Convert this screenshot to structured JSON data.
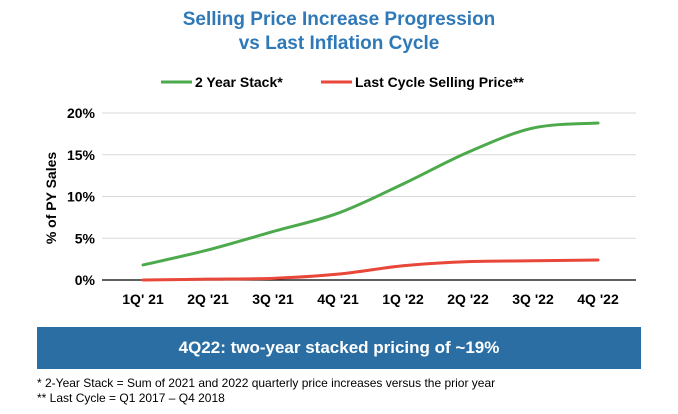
{
  "chart_data": {
    "type": "line",
    "title_line1": "Selling Price Increase Progression",
    "title_line2": "vs Last Inflation Cycle",
    "xlabel": "",
    "ylabel": "% of PY Sales",
    "categories": [
      "1Q' 21",
      "2Q '21",
      "3Q '21",
      "4Q '21",
      "1Q '22",
      "2Q '22",
      "3Q '22",
      "4Q '22"
    ],
    "y_ticks": [
      "0%",
      "5%",
      "10%",
      "15%",
      "20%"
    ],
    "ylim": [
      0,
      20
    ],
    "grid": true,
    "legend_position": "top",
    "series": [
      {
        "name": "2 Year Stack*",
        "color": "#4caa4c",
        "values": [
          1.8,
          3.6,
          5.8,
          8.0,
          11.5,
          15.3,
          18.2,
          18.8
        ]
      },
      {
        "name": "Last Cycle Selling Price**",
        "color": "#e8473a",
        "values": [
          0.0,
          0.1,
          0.2,
          0.7,
          1.7,
          2.2,
          2.3,
          2.4
        ]
      }
    ]
  },
  "banner": "4Q22: two-year stacked pricing of ~19%",
  "footnotes": [
    "* 2-Year Stack = Sum of 2021 and 2022 quarterly price increases versus the prior year",
    "** Last Cycle = Q1 2017 – Q4 2018"
  ],
  "colors": {
    "title": "#2f79b8",
    "banner_bg": "#2b6ea3"
  }
}
